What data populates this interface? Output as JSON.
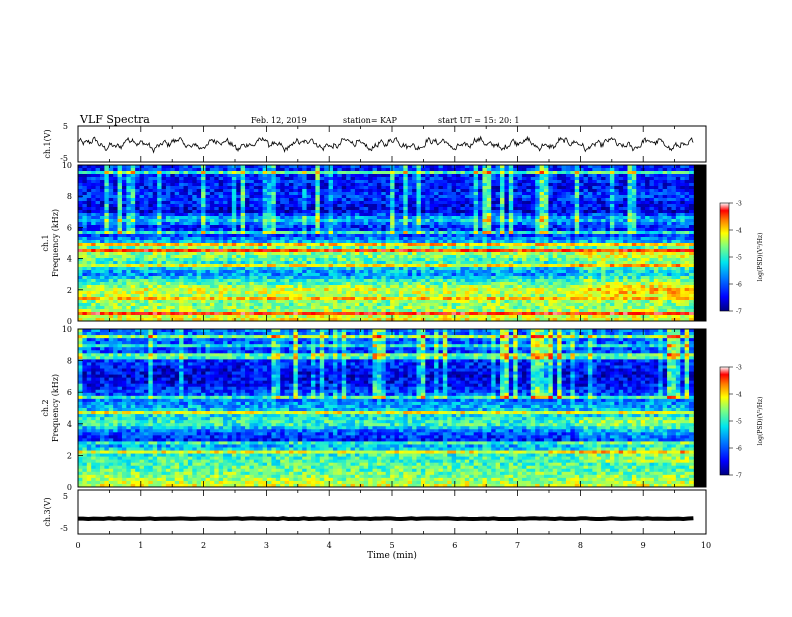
{
  "header": {
    "title": "VLF Spectra",
    "date": "Feb. 12, 2019",
    "station": "station= KAP",
    "start": "start  UT =   15: 20: 1"
  },
  "axes": {
    "ch1_label": "ch.1(V)",
    "ch3_label": "ch.3(V)",
    "spec1_label": "ch.1",
    "spec2_label": "ch.2",
    "freq_label": "Frequency  (kHz)",
    "x_label": "Time  (min)",
    "colorbar_label": "log(PSD)(V²/Hz)"
  },
  "colors": {
    "colormap": [
      "#00007f",
      "#0000ff",
      "#0077ff",
      "#00e5ee",
      "#7fff7f",
      "#ffff00",
      "#ff7f00",
      "#ff0000",
      "#ffffff"
    ]
  },
  "chart_data": [
    {
      "type": "line",
      "name": "ch1-waveform",
      "xlabel": "Time  (min)",
      "ylabel": "ch.1(V)",
      "xlim": [
        0,
        10
      ],
      "ylim": [
        -5,
        5
      ],
      "yticks": [
        "5",
        "-5"
      ],
      "x_end": 9.8,
      "baseline": 0,
      "amplitude": 1.5
    },
    {
      "type": "heatmap",
      "name": "ch1-spectrogram",
      "ylabel": "Frequency  (kHz)",
      "xlim": [
        0,
        10
      ],
      "ylim": [
        0,
        10
      ],
      "yticks": [
        "0",
        "2",
        "4",
        "6",
        "8",
        "10"
      ],
      "x_end": 9.8,
      "colorbar": {
        "label": "log(PSD)(V²/Hz)",
        "range": [
          -7,
          -3
        ],
        "ticks": [
          "-3",
          "-4",
          "-5",
          "-6",
          "-7"
        ]
      },
      "level_by_freq_khz": [
        [
          0.0,
          -4.5
        ],
        [
          0.5,
          -4.8
        ],
        [
          1.0,
          -5.0
        ],
        [
          1.5,
          -4.9
        ],
        [
          2.0,
          -4.6
        ],
        [
          2.5,
          -5.2
        ],
        [
          3.0,
          -5.9
        ],
        [
          3.5,
          -5.5
        ],
        [
          4.0,
          -5.1
        ],
        [
          4.5,
          -4.8
        ],
        [
          5.0,
          -5.6
        ],
        [
          5.5,
          -6.2
        ],
        [
          6.0,
          -6.4
        ],
        [
          6.5,
          -5.6
        ],
        [
          7.0,
          -6.6
        ],
        [
          7.5,
          -6.5
        ],
        [
          8.0,
          -6.3
        ],
        [
          8.5,
          -6.5
        ],
        [
          9.0,
          -6.4
        ],
        [
          9.5,
          -6.4
        ],
        [
          10.0,
          -6.3
        ]
      ]
    },
    {
      "type": "heatmap",
      "name": "ch2-spectrogram",
      "ylabel": "Frequency  (kHz)",
      "xlim": [
        0,
        10
      ],
      "ylim": [
        0,
        10
      ],
      "yticks": [
        "0",
        "2",
        "4",
        "6",
        "8",
        "10"
      ],
      "x_end": 9.8,
      "colorbar": {
        "label": "log(PSD)(V²/Hz)",
        "range": [
          -7,
          -3
        ],
        "ticks": [
          "-3",
          "-4",
          "-5",
          "-6",
          "-7"
        ]
      },
      "level_by_freq_khz": [
        [
          0.0,
          -4.6
        ],
        [
          0.5,
          -4.9
        ],
        [
          1.0,
          -5.1
        ],
        [
          1.5,
          -5.2
        ],
        [
          2.0,
          -5.3
        ],
        [
          2.5,
          -5.6
        ],
        [
          3.0,
          -6.4
        ],
        [
          3.5,
          -6.1
        ],
        [
          4.0,
          -5.2
        ],
        [
          4.5,
          -5.5
        ],
        [
          5.0,
          -5.7
        ],
        [
          5.5,
          -6.0
        ],
        [
          6.0,
          -6.2
        ],
        [
          6.5,
          -6.5
        ],
        [
          7.0,
          -6.6
        ],
        [
          7.5,
          -6.5
        ],
        [
          8.0,
          -6.3
        ],
        [
          8.5,
          -6.2
        ],
        [
          9.0,
          -6.1
        ],
        [
          9.5,
          -6.0
        ],
        [
          10.0,
          -6.0
        ]
      ]
    },
    {
      "type": "line",
      "name": "ch3-waveform",
      "xlabel": "Time  (min)",
      "ylabel": "ch.3(V)",
      "xlim": [
        0,
        10
      ],
      "ylim": [
        -5,
        5
      ],
      "yticks": [
        "5",
        "-5"
      ],
      "xticks": [
        "0",
        "1",
        "2",
        "3",
        "4",
        "5",
        "6",
        "7",
        "8",
        "9",
        "10"
      ],
      "x_end": 9.8,
      "baseline": -1.5,
      "amplitude": 0.2
    }
  ]
}
